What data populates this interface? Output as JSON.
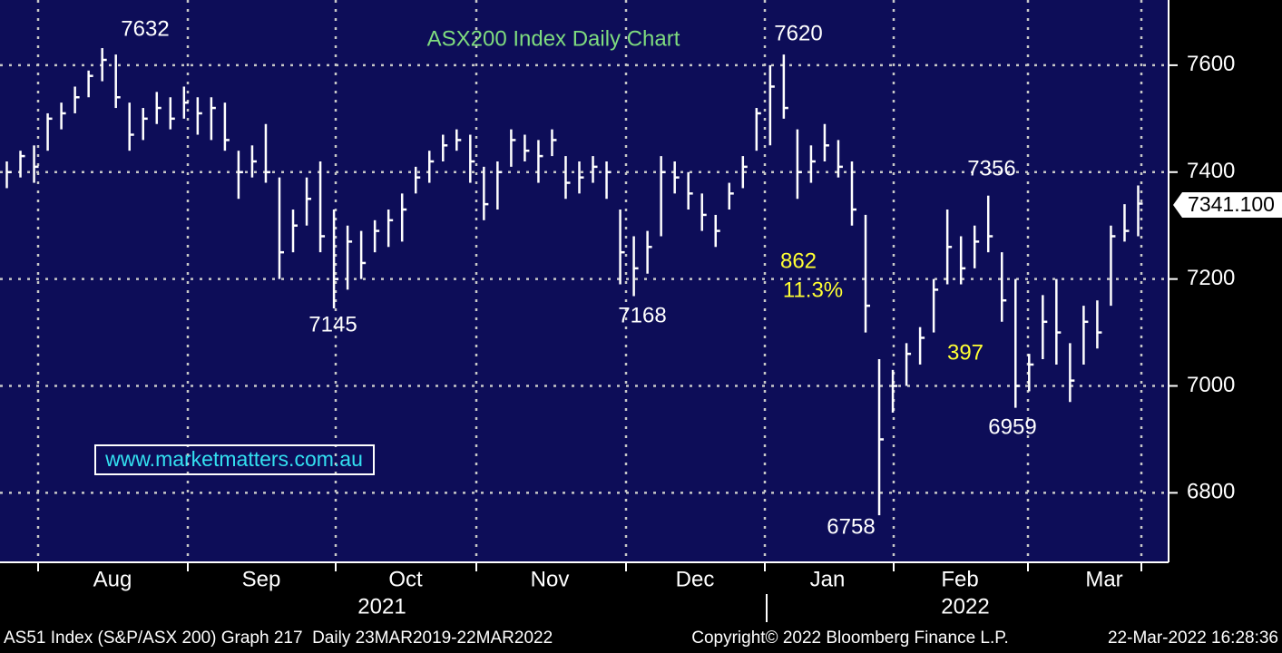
{
  "chart_data": {
    "type": "hlc",
    "title": "ASX200 Index Daily Chart",
    "series": [
      {
        "name": null,
        "color": "#ffffff",
        "high": [
          7420,
          7440,
          7450,
          7510,
          7530,
          7560,
          7590,
          7632,
          7620,
          7530,
          7520,
          7550,
          7540,
          7560,
          7540,
          7540,
          7530,
          7440,
          7450,
          7490,
          7390,
          7330,
          7390,
          7420,
          7330,
          7300,
          7290,
          7310,
          7330,
          7360,
          7410,
          7440,
          7470,
          7480,
          7470,
          7410,
          7420,
          7480,
          7470,
          7460,
          7480,
          7430,
          7420,
          7430,
          7420,
          7330,
          7280,
          7290,
          7430,
          7420,
          7400,
          7360,
          7320,
          7380,
          7430,
          7520,
          7600,
          7620,
          7480,
          7450,
          7490,
          7460,
          7420,
          7320,
          7050,
          7030,
          7080,
          7110,
          7200,
          7330,
          7280,
          7300,
          7356,
          7250,
          7200,
          7060,
          7170,
          7200,
          7080,
          7150,
          7160,
          7300,
          7340,
          7375
        ],
        "low": [
          7370,
          7390,
          7380,
          7440,
          7480,
          7510,
          7540,
          7570,
          7520,
          7440,
          7460,
          7490,
          7480,
          7500,
          7470,
          7460,
          7440,
          7350,
          7390,
          7380,
          7200,
          7250,
          7300,
          7250,
          7145,
          7180,
          7200,
          7250,
          7260,
          7270,
          7360,
          7380,
          7420,
          7440,
          7380,
          7310,
          7330,
          7410,
          7420,
          7380,
          7430,
          7350,
          7360,
          7380,
          7350,
          7190,
          7168,
          7210,
          7280,
          7360,
          7330,
          7290,
          7260,
          7330,
          7370,
          7440,
          7450,
          7500,
          7350,
          7380,
          7420,
          7390,
          7300,
          7100,
          6758,
          6950,
          7000,
          7040,
          7100,
          7190,
          7190,
          7220,
          7250,
          7120,
          6959,
          6990,
          7050,
          7040,
          6970,
          7040,
          7070,
          7150,
          7270,
          7280
        ],
        "close": [
          7400,
          7430,
          7410,
          7500,
          7510,
          7540,
          7580,
          7610,
          7540,
          7470,
          7500,
          7520,
          7500,
          7530,
          7510,
          7520,
          7460,
          7400,
          7420,
          7400,
          7250,
          7300,
          7350,
          7280,
          7200,
          7270,
          7230,
          7290,
          7310,
          7330,
          7390,
          7420,
          7450,
          7460,
          7420,
          7340,
          7400,
          7460,
          7440,
          7430,
          7460,
          7380,
          7390,
          7410,
          7400,
          7250,
          7220,
          7260,
          7400,
          7390,
          7360,
          7320,
          7290,
          7360,
          7410,
          7510,
          7560,
          7520,
          7400,
          7420,
          7450,
          7410,
          7330,
          7150,
          6900,
          7000,
          7060,
          7090,
          7180,
          7260,
          7220,
          7270,
          7280,
          7160,
          7000,
          7040,
          7120,
          7100,
          7010,
          7120,
          7100,
          7280,
          7290,
          7341.1
        ]
      }
    ],
    "last_price_label": "7341.100",
    "ylim": [
      6670,
      7722
    ],
    "yticks": [
      6800,
      7000,
      7200,
      7400,
      7600
    ],
    "grid": true,
    "months": [
      "Aug",
      "Sep",
      "Oct",
      "Nov",
      "Dec",
      "Jan",
      "Feb",
      "Mar"
    ],
    "years": [
      "2021",
      "2022"
    ],
    "annotations": [
      "7632",
      "7620",
      "7145",
      "7168",
      "7356",
      "6959",
      "6758"
    ],
    "highlights": [
      "862",
      "11.3%",
      "397"
    ],
    "watermark": "www.marketmatters.com.au",
    "footer": [
      "AS51 Index (S&P/ASX 200) Graph 217  Daily 23MAR2019-22MAR2022",
      "Copyright© 2022 Bloomberg Finance L.P.",
      "22-Mar-2022 16:28:36"
    ]
  }
}
